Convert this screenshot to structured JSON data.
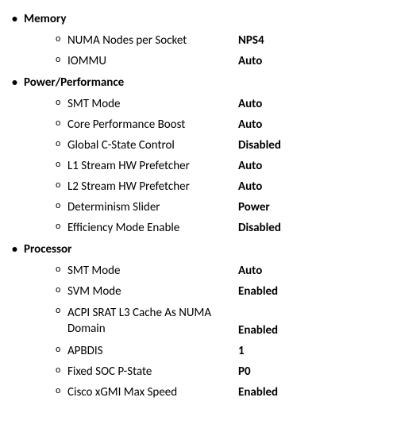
{
  "sections": [
    {
      "title": "Memory",
      "settings": [
        {
          "label": "NUMA Nodes per Socket",
          "value": "NPS4"
        },
        {
          "label": "IOMMU",
          "value": "Auto"
        }
      ]
    },
    {
      "title": "Power/Performance",
      "settings": [
        {
          "label": "SMT Mode",
          "value": "Auto"
        },
        {
          "label": "Core Performance Boost",
          "value": "Auto"
        },
        {
          "label": "Global C-State Control",
          "value": "Disabled"
        },
        {
          "label": "L1 Stream HW Prefetcher",
          "value": "Auto"
        },
        {
          "label": "L2 Stream HW Prefetcher",
          "value": "Auto"
        },
        {
          "label": "Determinism Slider",
          "value": "Power"
        },
        {
          "label": "Efficiency Mode Enable",
          "value": "Disabled"
        }
      ]
    },
    {
      "title": "Processor",
      "settings": [
        {
          "label": "SMT Mode",
          "value": "Auto"
        },
        {
          "label": "SVM Mode",
          "value": "Enabled"
        },
        {
          "label": "ACPI SRAT L3 Cache As NUMA Domain",
          "value": "Enabled",
          "multiline": true
        },
        {
          "label": "APBDIS",
          "value": "1"
        },
        {
          "label": "Fixed SOC P-State",
          "value": "P0"
        },
        {
          "label": "Cisco xGMI Max Speed",
          "value": "Enabled"
        }
      ]
    }
  ],
  "bullets": {
    "section": "•",
    "item": "o"
  }
}
